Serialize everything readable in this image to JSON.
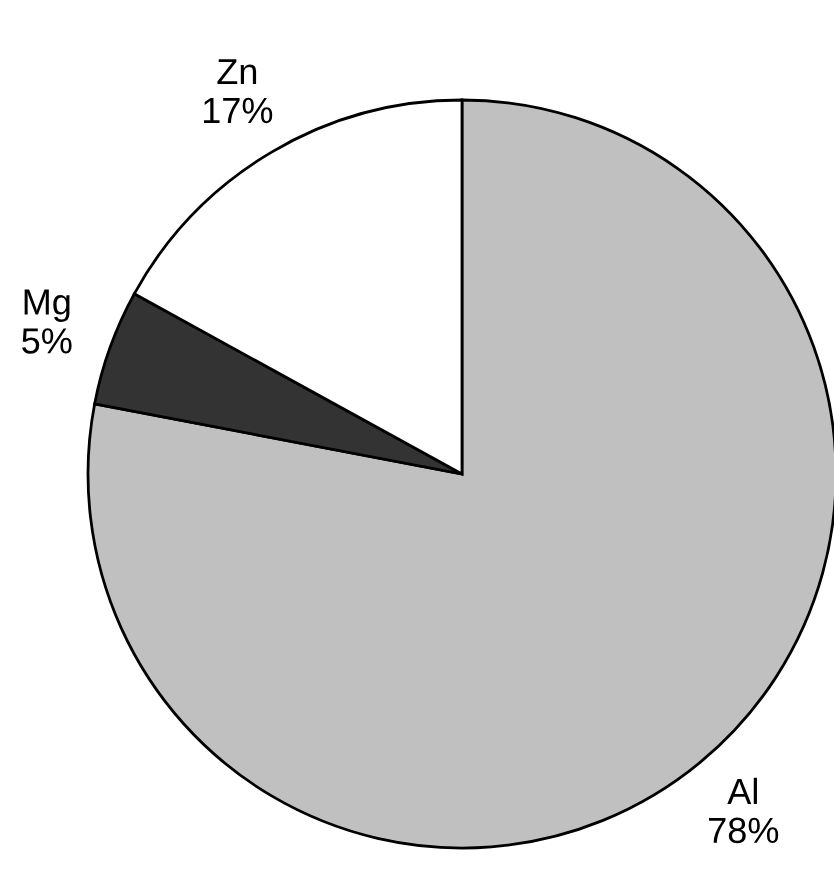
{
  "chart_data": {
    "type": "pie",
    "categories": [
      "Al",
      "Mg",
      "Zn"
    ],
    "values": [
      78,
      5,
      17
    ],
    "colors": [
      "#c0c0c0",
      "#333333",
      "#ffffff"
    ],
    "value_labels": [
      "78%",
      "5%",
      "17%"
    ]
  }
}
